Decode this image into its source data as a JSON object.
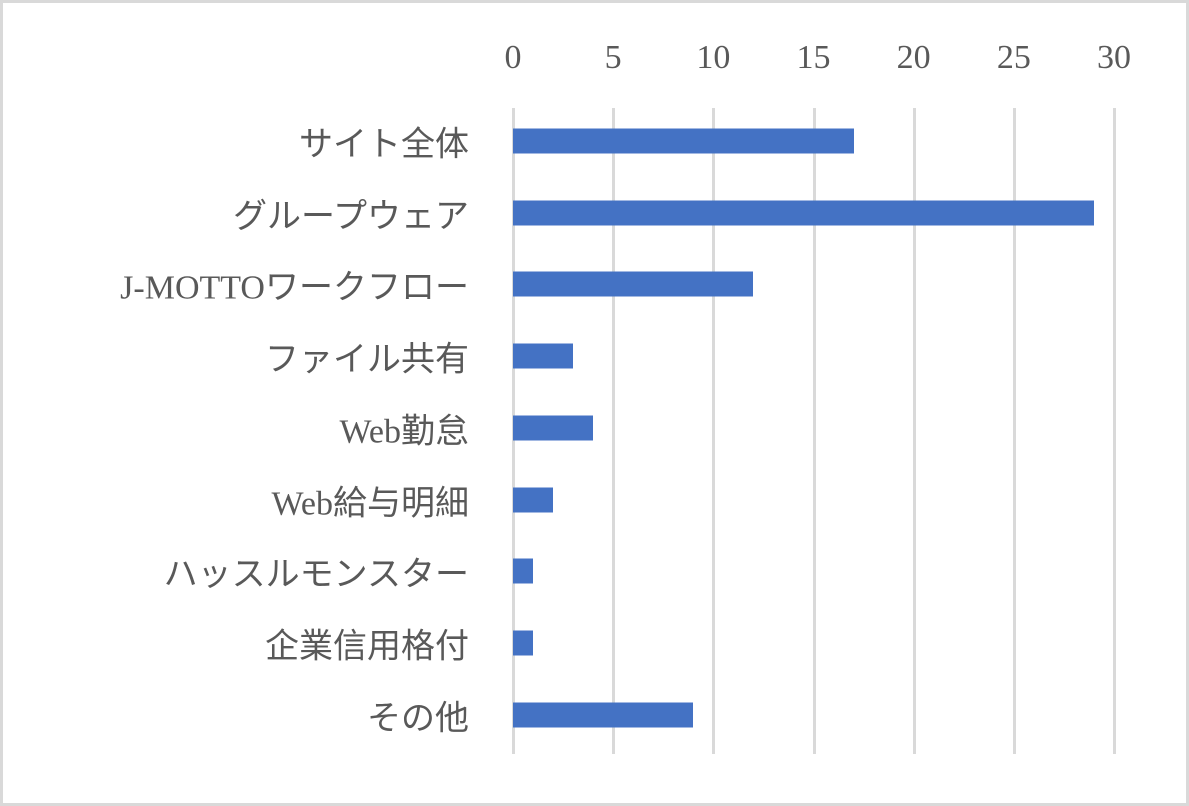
{
  "chart_data": {
    "type": "bar",
    "orientation": "horizontal",
    "title": "",
    "xlabel": "",
    "ylabel": "",
    "xlim": [
      0,
      30
    ],
    "x_ticks": [
      "0",
      "5",
      "10",
      "15",
      "20",
      "25",
      "30"
    ],
    "x_axis_position": "top",
    "grid": true,
    "legend": "none",
    "bar_color": "#4472c4",
    "categories": [
      "サイト全体",
      "グループウェア",
      "J-MOTTOワークフロー",
      "ファイル共有",
      "Web勤怠",
      "Web給与明細",
      "ハッスルモンスター",
      "企業信用格付",
      "その他"
    ],
    "values": [
      17,
      29,
      12,
      3,
      4,
      2,
      1,
      1,
      9
    ]
  }
}
